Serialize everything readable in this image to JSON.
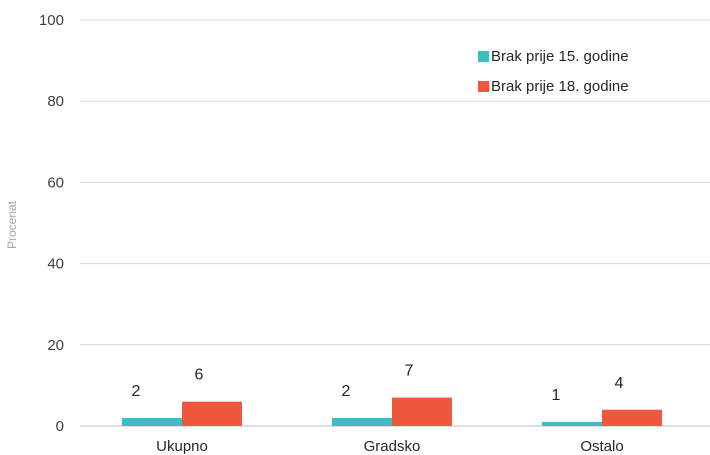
{
  "chart_data": {
    "type": "bar",
    "title": "",
    "xlabel": "",
    "ylabel": "Procenat",
    "ylim": [
      0,
      100
    ],
    "yticks": [
      0,
      20,
      40,
      60,
      80,
      100
    ],
    "grid": true,
    "legend_position": "top-right",
    "categories": [
      "Ukupno",
      "Gradsko",
      "Ostalo"
    ],
    "series": [
      {
        "name": "Brak prije 15. godine",
        "color": "#3dbdc2",
        "values": [
          2,
          2,
          1
        ],
        "labels": [
          "2",
          "2",
          "1"
        ]
      },
      {
        "name": "Brak prije 18. godine",
        "color": "#f0573f",
        "values": [
          6,
          7,
          4
        ],
        "labels": [
          "6",
          "7",
          "4"
        ]
      }
    ]
  }
}
